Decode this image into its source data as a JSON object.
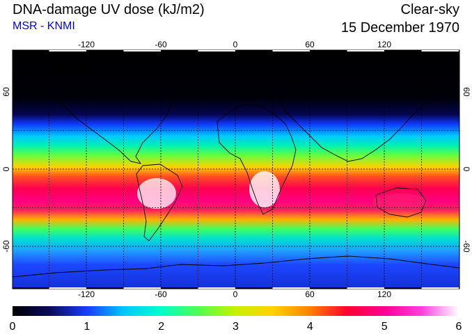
{
  "header": {
    "title": "DNA-damage UV dose (kJ/m2)",
    "subtitle": "MSR - KNMI",
    "sky_condition": "Clear-sky",
    "date": "15 December 1970"
  },
  "map": {
    "longitude_ticks": [
      "-120",
      "-60",
      "0",
      "60",
      "120"
    ],
    "latitude_ticks": [
      "60",
      "0",
      "-60"
    ]
  },
  "colorbar": {
    "tick_labels": [
      "0",
      "1",
      "2",
      "3",
      "4",
      "5",
      "6"
    ],
    "colors": [
      "#000000",
      "#0a0a5a",
      "#1a3cff",
      "#00c8ff",
      "#00ffc8",
      "#50ff50",
      "#c8f000",
      "#ffd200",
      "#ff8000",
      "#ff0032",
      "#ff0090",
      "#ff40e0",
      "#ffffff"
    ]
  },
  "colors": {
    "subtitle": "#0000ee"
  }
}
